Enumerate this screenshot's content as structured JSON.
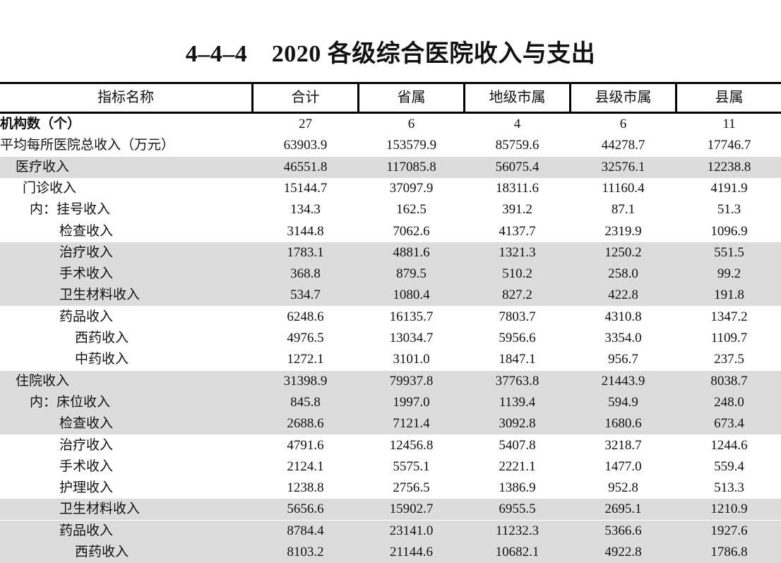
{
  "title": "4–4–4　2020 各级综合医院收入与支出",
  "columns": [
    "指标名称",
    "合计",
    "省属",
    "地级市属",
    "县级市属",
    "县属"
  ],
  "rows": [
    {
      "label": "机构数（个）",
      "indent": 0,
      "bold": true,
      "shade": false,
      "values": [
        "27",
        "6",
        "4",
        "6",
        "11"
      ]
    },
    {
      "label": "平均每所医院总收入（万元）",
      "indent": 0,
      "bold": false,
      "shade": false,
      "values": [
        "63903.9",
        "153579.9",
        "85759.6",
        "44278.7",
        "17746.7"
      ]
    },
    {
      "label": "医疗收入",
      "indent": 1,
      "bold": false,
      "shade": true,
      "values": [
        "46551.8",
        "117085.8",
        "56075.4",
        "32576.1",
        "12238.8"
      ]
    },
    {
      "label": "门诊收入",
      "indent": 2,
      "bold": false,
      "shade": false,
      "values": [
        "15144.7",
        "37097.9",
        "18311.6",
        "11160.4",
        "4191.9"
      ]
    },
    {
      "label": "内：挂号收入",
      "indent": 3,
      "bold": false,
      "shade": false,
      "values": [
        "134.3",
        "162.5",
        "391.2",
        "87.1",
        "51.3"
      ]
    },
    {
      "label": "检查收入",
      "indent": 4,
      "bold": false,
      "shade": false,
      "values": [
        "3144.8",
        "7062.6",
        "4137.7",
        "2319.9",
        "1096.9"
      ]
    },
    {
      "label": "治疗收入",
      "indent": 4,
      "bold": false,
      "shade": true,
      "values": [
        "1783.1",
        "4881.6",
        "1321.3",
        "1250.2",
        "551.5"
      ]
    },
    {
      "label": "手术收入",
      "indent": 4,
      "bold": false,
      "shade": true,
      "values": [
        "368.8",
        "879.5",
        "510.2",
        "258.0",
        "99.2"
      ]
    },
    {
      "label": "卫生材料收入",
      "indent": 4,
      "bold": false,
      "shade": true,
      "values": [
        "534.7",
        "1080.4",
        "827.2",
        "422.8",
        "191.8"
      ]
    },
    {
      "label": "药品收入",
      "indent": 4,
      "bold": false,
      "shade": false,
      "values": [
        "6248.6",
        "16135.7",
        "7803.7",
        "4310.8",
        "1347.2"
      ]
    },
    {
      "label": "西药收入",
      "indent": 5,
      "bold": false,
      "shade": false,
      "values": [
        "4976.5",
        "13034.7",
        "5956.6",
        "3354.0",
        "1109.7"
      ]
    },
    {
      "label": "中药收入",
      "indent": 5,
      "bold": false,
      "shade": false,
      "values": [
        "1272.1",
        "3101.0",
        "1847.1",
        "956.7",
        "237.5"
      ]
    },
    {
      "label": "住院收入",
      "indent": 1,
      "bold": false,
      "shade": true,
      "values": [
        "31398.9",
        "79937.8",
        "37763.8",
        "21443.9",
        "8038.7"
      ]
    },
    {
      "label": "内：床位收入",
      "indent": 3,
      "bold": false,
      "shade": true,
      "values": [
        "845.8",
        "1997.0",
        "1139.4",
        "594.9",
        "248.0"
      ]
    },
    {
      "label": "检查收入",
      "indent": 4,
      "bold": false,
      "shade": true,
      "values": [
        "2688.6",
        "7121.4",
        "3092.8",
        "1680.6",
        "673.4"
      ]
    },
    {
      "label": "治疗收入",
      "indent": 4,
      "bold": false,
      "shade": false,
      "values": [
        "4791.6",
        "12456.8",
        "5407.8",
        "3218.7",
        "1244.6"
      ]
    },
    {
      "label": "手术收入",
      "indent": 4,
      "bold": false,
      "shade": false,
      "values": [
        "2124.1",
        "5575.1",
        "2221.1",
        "1477.0",
        "559.4"
      ]
    },
    {
      "label": "护理收入",
      "indent": 4,
      "bold": false,
      "shade": false,
      "values": [
        "1238.8",
        "2756.5",
        "1386.9",
        "952.8",
        "513.3"
      ]
    },
    {
      "label": "卫生材料收入",
      "indent": 4,
      "bold": false,
      "shade": true,
      "values": [
        "5656.6",
        "15902.7",
        "6955.5",
        "2695.1",
        "1210.9"
      ]
    },
    {
      "label": "药品收入",
      "indent": 4,
      "bold": false,
      "shade": true,
      "values": [
        "8784.4",
        "23141.0",
        "11232.3",
        "5366.6",
        "1927.6"
      ]
    },
    {
      "label": "西药收入",
      "indent": 5,
      "bold": false,
      "shade": true,
      "values": [
        "8103.2",
        "21144.6",
        "10682.1",
        "4922.8",
        "1786.8"
      ]
    }
  ]
}
